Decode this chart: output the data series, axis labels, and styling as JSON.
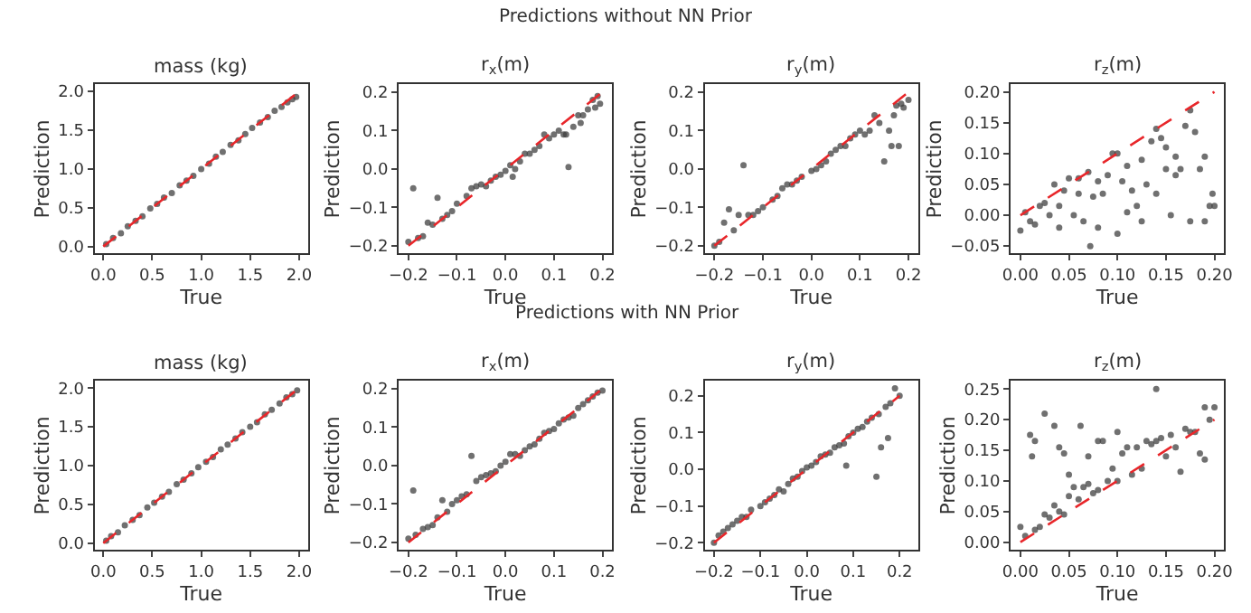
{
  "chart_data": [
    {
      "type": "scatter",
      "title": "mass (kg)",
      "xlabel": "True",
      "ylabel": "Prediction",
      "annotations": [
        "Predictions without NN Prior"
      ],
      "marker": "circle",
      "grid": false,
      "legend": false,
      "xlim": [
        -0.09,
        2.09
      ],
      "ylim": [
        -0.09,
        2.09
      ],
      "xticks": [
        {
          "value": 0,
          "label": "0.0"
        },
        0.5,
        {
          "value": 1,
          "label": "1.0"
        },
        1.5,
        {
          "value": 2,
          "label": "2.0"
        }
      ],
      "yticks": [
        {
          "value": 0,
          "label": "0.0"
        },
        0.5,
        {
          "value": 1,
          "label": "1.0"
        },
        1.5,
        {
          "value": 2,
          "label": "2.0"
        }
      ],
      "series": [
        {
          "color": "#404040",
          "x": [
            0.03,
            0.1,
            0.18,
            0.25,
            0.33,
            0.4,
            0.48,
            0.55,
            0.62,
            0.7,
            0.78,
            0.85,
            0.92,
            1.0,
            1.08,
            1.15,
            1.22,
            1.3,
            1.38,
            1.45,
            1.52,
            1.6,
            1.68,
            1.75,
            1.82,
            1.88,
            1.93,
            1.97
          ],
          "values": [
            0.03,
            0.11,
            0.17,
            0.26,
            0.33,
            0.39,
            0.49,
            0.55,
            0.63,
            0.69,
            0.79,
            0.85,
            0.91,
            1.0,
            1.07,
            1.16,
            1.22,
            1.31,
            1.37,
            1.45,
            1.53,
            1.6,
            1.67,
            1.75,
            1.8,
            1.86,
            1.9,
            1.93
          ]
        },
        {
          "type": "line",
          "color": "#e8262a",
          "line_style": "dashed",
          "marker": "none",
          "x": [
            0,
            2
          ],
          "values": [
            0,
            2
          ]
        }
      ]
    },
    {
      "type": "scatter",
      "title": "r$_{x}$(m)",
      "xlabel": "True",
      "ylabel": "Prediction",
      "marker": "circle",
      "grid": false,
      "legend": false,
      "xlim": [
        -0.22,
        0.22
      ],
      "ylim": [
        -0.22,
        0.22
      ],
      "xticks": [
        {
          "value": -0.2,
          "label": "−0.2"
        },
        {
          "value": -0.1,
          "label": "−0.1"
        },
        {
          "value": 0,
          "label": "0.0"
        },
        0.1,
        0.2
      ],
      "yticks": [
        {
          "value": -0.2,
          "label": "−0.2"
        },
        {
          "value": -0.1,
          "label": "−0.1"
        },
        {
          "value": 0,
          "label": "0.0"
        },
        0.1,
        0.2
      ],
      "series": [
        {
          "color": "#404040",
          "x": [
            -0.2,
            -0.19,
            -0.18,
            -0.17,
            -0.16,
            -0.15,
            -0.14,
            -0.13,
            -0.12,
            -0.11,
            -0.1,
            -0.08,
            -0.07,
            -0.06,
            -0.05,
            -0.04,
            -0.03,
            -0.02,
            -0.01,
            0.0,
            0.01,
            0.015,
            0.02,
            0.03,
            0.04,
            0.05,
            0.06,
            0.07,
            0.08,
            0.09,
            0.1,
            0.11,
            0.12,
            0.13,
            0.14,
            0.15,
            0.16,
            0.17,
            0.18,
            0.19,
            0.195,
            0.185,
            0.155,
            0.125
          ],
          "values": [
            -0.19,
            -0.05,
            -0.18,
            -0.175,
            -0.14,
            -0.145,
            -0.075,
            -0.13,
            -0.12,
            -0.11,
            -0.09,
            -0.07,
            -0.05,
            -0.045,
            -0.04,
            -0.045,
            -0.03,
            -0.02,
            -0.015,
            -0.005,
            0.01,
            -0.02,
            0.0,
            0.02,
            0.04,
            0.04,
            0.05,
            0.06,
            0.09,
            0.08,
            0.09,
            0.1,
            0.09,
            0.005,
            0.11,
            0.14,
            0.14,
            0.155,
            0.18,
            0.19,
            0.17,
            0.16,
            0.12,
            0.09
          ]
        },
        {
          "type": "line",
          "color": "#e8262a",
          "line_style": "dashed",
          "marker": "none",
          "x": [
            -0.2,
            0.2
          ],
          "values": [
            -0.2,
            0.2
          ]
        }
      ]
    },
    {
      "type": "scatter",
      "title": "r$_{y}$(m)",
      "xlabel": "True",
      "ylabel": "Prediction",
      "marker": "circle",
      "grid": false,
      "legend": false,
      "xlim": [
        -0.22,
        0.22
      ],
      "ylim": [
        -0.22,
        0.22
      ],
      "xticks": [
        {
          "value": -0.2,
          "label": "−0.2"
        },
        {
          "value": -0.1,
          "label": "−0.1"
        },
        {
          "value": 0,
          "label": "0.0"
        },
        0.1,
        0.2
      ],
      "yticks": [
        {
          "value": -0.2,
          "label": "−0.2"
        },
        {
          "value": -0.1,
          "label": "−0.1"
        },
        {
          "value": 0,
          "label": "0.0"
        },
        0.1,
        0.2
      ],
      "series": [
        {
          "color": "#404040",
          "x": [
            -0.2,
            -0.19,
            -0.18,
            -0.17,
            -0.16,
            -0.15,
            -0.14,
            -0.13,
            -0.12,
            -0.11,
            -0.1,
            -0.08,
            -0.07,
            -0.06,
            -0.05,
            -0.04,
            -0.03,
            -0.02,
            0.0,
            0.01,
            0.02,
            0.03,
            0.04,
            0.05,
            0.06,
            0.07,
            0.08,
            0.09,
            0.1,
            0.11,
            0.12,
            0.13,
            0.14,
            0.15,
            0.16,
            0.165,
            0.17,
            0.175,
            0.18,
            0.185,
            0.19,
            0.2
          ],
          "values": [
            -0.2,
            -0.19,
            -0.14,
            -0.105,
            -0.16,
            -0.12,
            0.01,
            -0.12,
            -0.12,
            -0.11,
            -0.1,
            -0.08,
            -0.07,
            -0.05,
            -0.04,
            -0.04,
            -0.03,
            -0.02,
            -0.005,
            0.0,
            0.01,
            0.02,
            0.04,
            0.05,
            0.06,
            0.06,
            0.08,
            0.09,
            0.1,
            0.09,
            0.1,
            0.14,
            0.12,
            0.02,
            0.1,
            0.06,
            0.14,
            0.165,
            0.06,
            0.17,
            0.16,
            0.18
          ]
        },
        {
          "type": "line",
          "color": "#e8262a",
          "line_style": "dashed",
          "marker": "none",
          "x": [
            -0.2,
            0.2
          ],
          "values": [
            -0.2,
            0.2
          ]
        }
      ]
    },
    {
      "type": "scatter",
      "title": "r$_{z}$(m)",
      "xlabel": "True",
      "ylabel": "Prediction",
      "marker": "circle",
      "grid": false,
      "legend": false,
      "xlim": [
        -0.01,
        0.21
      ],
      "ylim": [
        -0.062,
        0.212
      ],
      "xticks": [
        {
          "value": 0,
          "label": "0.00"
        },
        0.05,
        {
          "value": 0.1,
          "label": "0.10"
        },
        0.15,
        {
          "value": 0.2,
          "label": "0.20"
        }
      ],
      "yticks": [
        {
          "value": -0.05,
          "label": "−0.05"
        },
        {
          "value": 0,
          "label": "0.00"
        },
        0.05,
        {
          "value": 0.1,
          "label": "0.10"
        },
        0.15,
        {
          "value": 0.2,
          "label": "0.20"
        }
      ],
      "series": [
        {
          "color": "#404040",
          "x": [
            0.0,
            0.005,
            0.01,
            0.015,
            0.02,
            0.025,
            0.03,
            0.035,
            0.04,
            0.04,
            0.045,
            0.05,
            0.055,
            0.06,
            0.06,
            0.065,
            0.07,
            0.072,
            0.075,
            0.08,
            0.08,
            0.085,
            0.09,
            0.095,
            0.1,
            0.1,
            0.105,
            0.11,
            0.11,
            0.115,
            0.12,
            0.125,
            0.125,
            0.13,
            0.135,
            0.14,
            0.14,
            0.145,
            0.15,
            0.15,
            0.155,
            0.16,
            0.16,
            0.165,
            0.17,
            0.175,
            0.175,
            0.18,
            0.185,
            0.19,
            0.19,
            0.195,
            0.198,
            0.2
          ],
          "values": [
            -0.025,
            0.005,
            -0.01,
            -0.015,
            0.015,
            0.02,
            0.0,
            0.05,
            -0.02,
            0.015,
            0.04,
            0.06,
            0.0,
            0.035,
            0.06,
            -0.01,
            0.07,
            -0.05,
            0.03,
            0.055,
            -0.02,
            0.035,
            0.065,
            0.1,
            -0.03,
            0.1,
            0.055,
            0.08,
            0.005,
            0.04,
            0.015,
            0.09,
            -0.01,
            0.05,
            0.12,
            0.035,
            0.14,
            0.125,
            0.11,
            0.075,
            0.0,
            0.095,
            0.065,
            0.075,
            0.145,
            0.17,
            -0.01,
            0.135,
            0.075,
            -0.01,
            0.095,
            0.015,
            0.035,
            0.015
          ]
        },
        {
          "type": "line",
          "color": "#e8262a",
          "line_style": "dashed",
          "marker": "none",
          "x": [
            0,
            0.2
          ],
          "values": [
            0,
            0.2
          ]
        }
      ]
    },
    {
      "type": "scatter",
      "title": "mass (kg)",
      "xlabel": "True",
      "ylabel": "Prediction",
      "annotations": [
        "Predictions with NN Prior"
      ],
      "marker": "circle",
      "grid": false,
      "legend": false,
      "xlim": [
        -0.09,
        2.09
      ],
      "ylim": [
        -0.09,
        2.09
      ],
      "xticks": [
        {
          "value": 0,
          "label": "0.0"
        },
        0.5,
        {
          "value": 1,
          "label": "1.0"
        },
        1.5,
        {
          "value": 2,
          "label": "2.0"
        }
      ],
      "yticks": [
        {
          "value": 0,
          "label": "0.0"
        },
        0.5,
        {
          "value": 1,
          "label": "1.0"
        },
        1.5,
        {
          "value": 2,
          "label": "2.0"
        }
      ],
      "series": [
        {
          "color": "#404040",
          "x": [
            0.03,
            0.08,
            0.15,
            0.22,
            0.3,
            0.37,
            0.45,
            0.52,
            0.6,
            0.67,
            0.75,
            0.82,
            0.9,
            0.97,
            1.05,
            1.12,
            1.2,
            1.27,
            1.35,
            1.42,
            1.5,
            1.57,
            1.65,
            1.72,
            1.8,
            1.87,
            1.93,
            1.98
          ],
          "values": [
            0.03,
            0.09,
            0.14,
            0.23,
            0.3,
            0.36,
            0.46,
            0.52,
            0.6,
            0.66,
            0.76,
            0.82,
            0.9,
            0.98,
            1.05,
            1.11,
            1.21,
            1.27,
            1.35,
            1.43,
            1.5,
            1.56,
            1.66,
            1.72,
            1.8,
            1.88,
            1.92,
            1.97
          ]
        },
        {
          "type": "line",
          "color": "#e8262a",
          "line_style": "dashed",
          "marker": "none",
          "x": [
            0,
            2
          ],
          "values": [
            0,
            2
          ]
        }
      ]
    },
    {
      "type": "scatter",
      "title": "r$_{x}$(m)",
      "xlabel": "True",
      "ylabel": "Prediction",
      "marker": "circle",
      "grid": false,
      "legend": false,
      "xlim": [
        -0.22,
        0.22
      ],
      "ylim": [
        -0.22,
        0.22
      ],
      "xticks": [
        {
          "value": -0.2,
          "label": "−0.2"
        },
        {
          "value": -0.1,
          "label": "−0.1"
        },
        {
          "value": 0,
          "label": "0.0"
        },
        0.1,
        0.2
      ],
      "yticks": [
        {
          "value": -0.2,
          "label": "−0.2"
        },
        {
          "value": -0.1,
          "label": "−0.1"
        },
        {
          "value": 0,
          "label": "0.0"
        },
        0.1,
        0.2
      ],
      "series": [
        {
          "color": "#404040",
          "x": [
            -0.2,
            -0.19,
            -0.185,
            -0.17,
            -0.16,
            -0.15,
            -0.14,
            -0.13,
            -0.12,
            -0.11,
            -0.1,
            -0.09,
            -0.08,
            -0.07,
            -0.06,
            -0.05,
            -0.04,
            -0.03,
            -0.02,
            -0.01,
            0.0,
            0.01,
            0.02,
            0.03,
            0.04,
            0.05,
            0.06,
            0.07,
            0.08,
            0.09,
            0.1,
            0.11,
            0.12,
            0.13,
            0.14,
            0.15,
            0.16,
            0.17,
            0.18,
            0.19,
            0.2
          ],
          "values": [
            -0.19,
            -0.065,
            -0.18,
            -0.165,
            -0.16,
            -0.155,
            -0.135,
            -0.09,
            -0.12,
            -0.1,
            -0.09,
            -0.08,
            -0.075,
            0.025,
            -0.04,
            -0.03,
            -0.025,
            -0.02,
            -0.015,
            0.0,
            0.01,
            0.03,
            0.03,
            0.025,
            0.04,
            0.05,
            0.055,
            0.07,
            0.085,
            0.09,
            0.095,
            0.11,
            0.12,
            0.125,
            0.13,
            0.15,
            0.16,
            0.17,
            0.18,
            0.19,
            0.195
          ]
        },
        {
          "type": "line",
          "color": "#e8262a",
          "line_style": "dashed",
          "marker": "none",
          "x": [
            -0.2,
            0.2
          ],
          "values": [
            -0.2,
            0.2
          ]
        }
      ]
    },
    {
      "type": "scatter",
      "title": "r$_{y}$(m)",
      "xlabel": "True",
      "ylabel": "Prediction",
      "marker": "circle",
      "grid": false,
      "legend": false,
      "xlim": [
        -0.22,
        0.24
      ],
      "ylim": [
        -0.22,
        0.24
      ],
      "xticks": [
        {
          "value": -0.2,
          "label": "−0.2"
        },
        {
          "value": -0.1,
          "label": "−0.1"
        },
        {
          "value": 0,
          "label": "0.0"
        },
        0.1,
        0.2
      ],
      "yticks": [
        {
          "value": -0.2,
          "label": "−0.2"
        },
        {
          "value": -0.1,
          "label": "−0.1"
        },
        {
          "value": 0,
          "label": "0.0"
        },
        0.1,
        0.2
      ],
      "series": [
        {
          "color": "#404040",
          "x": [
            -0.2,
            -0.19,
            -0.18,
            -0.17,
            -0.16,
            -0.15,
            -0.14,
            -0.13,
            -0.12,
            -0.1,
            -0.09,
            -0.08,
            -0.07,
            -0.06,
            -0.05,
            -0.04,
            -0.03,
            -0.02,
            -0.01,
            0.0,
            0.01,
            0.02,
            0.03,
            0.04,
            0.05,
            0.06,
            0.07,
            0.08,
            0.085,
            0.09,
            0.1,
            0.11,
            0.12,
            0.13,
            0.14,
            0.15,
            0.155,
            0.16,
            0.17,
            0.175,
            0.18,
            0.19,
            0.2
          ],
          "values": [
            -0.2,
            -0.18,
            -0.17,
            -0.16,
            -0.15,
            -0.14,
            -0.13,
            -0.13,
            -0.11,
            -0.1,
            -0.09,
            -0.08,
            -0.07,
            -0.055,
            -0.06,
            -0.04,
            -0.025,
            -0.02,
            -0.005,
            0.005,
            0.01,
            0.02,
            0.035,
            0.04,
            0.045,
            0.06,
            0.065,
            0.07,
            0.01,
            0.09,
            0.1,
            0.11,
            0.115,
            0.13,
            0.14,
            -0.02,
            0.15,
            0.06,
            0.17,
            0.085,
            0.18,
            0.22,
            0.2
          ]
        },
        {
          "type": "line",
          "color": "#e8262a",
          "line_style": "dashed",
          "marker": "none",
          "x": [
            -0.2,
            0.2
          ],
          "values": [
            -0.2,
            0.2
          ]
        }
      ]
    },
    {
      "type": "scatter",
      "title": "r$_{z}$(m)",
      "xlabel": "True",
      "ylabel": "Prediction",
      "marker": "circle",
      "grid": false,
      "legend": false,
      "xlim": [
        -0.01,
        0.21
      ],
      "ylim": [
        -0.013,
        0.263
      ],
      "xticks": [
        {
          "value": 0,
          "label": "0.00"
        },
        0.05,
        {
          "value": 0.1,
          "label": "0.10"
        },
        0.15,
        {
          "value": 0.2,
          "label": "0.20"
        }
      ],
      "yticks": [
        {
          "value": 0,
          "label": "0.00"
        },
        0.05,
        {
          "value": 0.1,
          "label": "0.10"
        },
        0.15,
        {
          "value": 0.2,
          "label": "0.20"
        },
        0.25
      ],
      "series": [
        {
          "color": "#404040",
          "x": [
            0.0,
            0.005,
            0.01,
            0.012,
            0.015,
            0.015,
            0.02,
            0.025,
            0.025,
            0.03,
            0.035,
            0.035,
            0.04,
            0.04,
            0.045,
            0.045,
            0.05,
            0.05,
            0.055,
            0.06,
            0.062,
            0.065,
            0.07,
            0.07,
            0.075,
            0.08,
            0.08,
            0.085,
            0.09,
            0.095,
            0.1,
            0.1,
            0.105,
            0.11,
            0.115,
            0.12,
            0.125,
            0.13,
            0.135,
            0.14,
            0.14,
            0.145,
            0.15,
            0.155,
            0.16,
            0.165,
            0.17,
            0.175,
            0.18,
            0.185,
            0.19,
            0.19,
            0.195,
            0.2
          ],
          "values": [
            0.025,
            0.01,
            0.175,
            0.14,
            0.165,
            0.02,
            0.025,
            0.045,
            0.21,
            0.04,
            0.06,
            0.19,
            0.05,
            0.155,
            0.145,
            0.045,
            0.075,
            0.11,
            0.09,
            0.07,
            0.19,
            0.09,
            0.095,
            0.14,
            0.08,
            0.085,
            0.165,
            0.165,
            0.1,
            0.12,
            0.1,
            0.18,
            0.145,
            0.155,
            0.11,
            0.155,
            0.12,
            0.165,
            0.16,
            0.25,
            0.165,
            0.17,
            0.14,
            0.175,
            0.155,
            0.115,
            0.185,
            0.18,
            0.18,
            0.145,
            0.135,
            0.22,
            0.2,
            0.22
          ]
        },
        {
          "type": "line",
          "color": "#e8262a",
          "line_style": "dashed",
          "marker": "none",
          "x": [
            0,
            0.2
          ],
          "values": [
            0,
            0.2
          ]
        }
      ]
    }
  ]
}
